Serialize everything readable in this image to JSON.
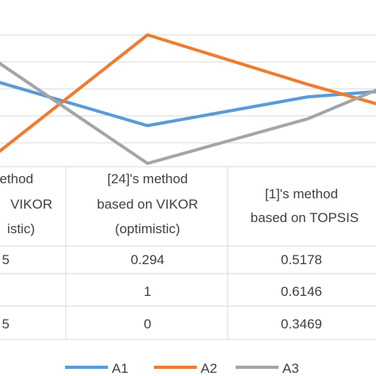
{
  "chart_data": {
    "type": "line",
    "categories": [
      {
        "line1": "'s method",
        "line2": "based on VIKOR",
        "line3": "(pessimistic)",
        "visible_line1": "method",
        "visible_line2": "VIKOR",
        "visible_line3": "istic)"
      },
      {
        "line1": "[24]'s method",
        "line2": "based on VIKOR",
        "line3": "(optimistic)"
      },
      {
        "line1": "[1]'s method",
        "line2": "based on TOPSIS",
        "line3": ""
      },
      {
        "line1": "",
        "line2": "",
        "line3": ""
      }
    ],
    "series": [
      {
        "name": "A1",
        "color": "#5B9BD5",
        "values": [
          0.665,
          0.294,
          0.5178,
          0.59
        ],
        "table_text": [
          "5",
          "0.294",
          "0.5178",
          ""
        ]
      },
      {
        "name": "A2",
        "color": "#ED7D31",
        "values": [
          0.0,
          1,
          0.6146,
          0.35
        ],
        "table_text": [
          "",
          "1",
          "0.6146",
          ""
        ]
      },
      {
        "name": "A3",
        "color": "#A5A5A5",
        "values": [
          0.86,
          0,
          0.3469,
          0.74
        ],
        "table_text": [
          "5",
          "0",
          "0.3469",
          ""
        ]
      }
    ],
    "grid": true,
    "legend": "bottom",
    "data_table": true
  }
}
